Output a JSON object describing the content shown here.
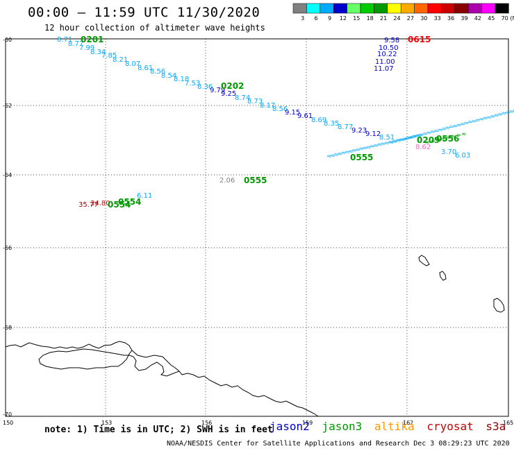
{
  "header": {
    "title": "00:00 – 11:59 UTC 11/30/2020",
    "subtitle": "12 hour collection of altimeter wave heights"
  },
  "legend": {
    "unit": "(ft)",
    "bins": [
      {
        "label": "3",
        "color": "#808080"
      },
      {
        "label": "6",
        "color": "#00ffff"
      },
      {
        "label": "9",
        "color": "#00aaff"
      },
      {
        "label": "12",
        "color": "#0000cc"
      },
      {
        "label": "15",
        "color": "#66ff66"
      },
      {
        "label": "18",
        "color": "#00cc00"
      },
      {
        "label": "21",
        "color": "#009900"
      },
      {
        "label": "24",
        "color": "#ffff00"
      },
      {
        "label": "27",
        "color": "#ffaa00"
      },
      {
        "label": "30",
        "color": "#ff6600"
      },
      {
        "label": "33",
        "color": "#ff0000"
      },
      {
        "label": "36",
        "color": "#cc0000"
      },
      {
        "label": "39",
        "color": "#880000"
      },
      {
        "label": "42",
        "color": "#aa00aa"
      },
      {
        "label": "45",
        "color": "#ff00ff"
      },
      {
        "label": "70",
        "color": "#000000"
      }
    ]
  },
  "axes": {
    "lat_labels": [
      "-60",
      "-62",
      "-64",
      "-66",
      "-68",
      "-70"
    ],
    "lon_labels": [
      "150",
      "153",
      "156",
      "159",
      "162",
      "165"
    ]
  },
  "footer": {
    "note": "note: 1) Time is in UTC; 2) SWH is in feet",
    "credit": "NOAA/NESDIS Center for Satellite Applications and Research   Dec  3 08:29:23 UTC 2020"
  },
  "satellites": [
    {
      "name": "jason2",
      "color": "#0000cc"
    },
    {
      "name": "jason3",
      "color": "#009900"
    },
    {
      "name": "altika",
      "color": "#ff9900"
    },
    {
      "name": "cryosat",
      "color": "#cc0000"
    },
    {
      "name": "s3a",
      "color": "#880000"
    }
  ],
  "observations": [
    {
      "value": "8.71",
      "color": "#00aaff"
    },
    {
      "value": "8.77",
      "color": "#00aaff"
    },
    {
      "value": "7.99",
      "color": "#00aaff"
    },
    {
      "value": "8.34",
      "color": "#00aaff"
    },
    {
      "value": "7.85",
      "color": "#00aaff"
    },
    {
      "value": "8.21",
      "color": "#00aaff"
    },
    {
      "value": "8.07",
      "color": "#00aaff"
    },
    {
      "value": "8.61",
      "color": "#00aaff"
    },
    {
      "value": "8.56",
      "color": "#00aaff"
    },
    {
      "value": "8.54",
      "color": "#00aaff"
    },
    {
      "value": "8.18",
      "color": "#00aaff"
    },
    {
      "value": "7.53",
      "color": "#00aaff"
    },
    {
      "value": "8.36",
      "color": "#00aaff"
    },
    {
      "value": "9.79",
      "color": "#0000cc"
    },
    {
      "value": "9.25",
      "color": "#0000cc"
    },
    {
      "value": "8.74",
      "color": "#00aaff"
    },
    {
      "value": "8.73",
      "color": "#00aaff"
    },
    {
      "value": "8.17",
      "color": "#00aaff"
    },
    {
      "value": "8.56",
      "color": "#00aaff"
    },
    {
      "value": "9.15",
      "color": "#0000cc"
    },
    {
      "value": "9.61",
      "color": "#0000cc"
    },
    {
      "value": "8.69",
      "color": "#00aaff"
    },
    {
      "value": "8.35",
      "color": "#00aaff"
    },
    {
      "value": "8.77",
      "color": "#00aaff"
    },
    {
      "value": "9.23",
      "color": "#0000cc"
    },
    {
      "value": "9.12",
      "color": "#0000cc"
    },
    {
      "value": "8.51",
      "color": "#00aaff"
    },
    {
      "value": "9.58",
      "color": "#0000cc"
    },
    {
      "value": "10.50",
      "color": "#0000cc"
    },
    {
      "value": "10.22",
      "color": "#0000cc"
    },
    {
      "value": "11.00",
      "color": "#0000cc"
    },
    {
      "value": "11.07",
      "color": "#0000cc"
    },
    {
      "value": "8.62",
      "color": "#ff66cc"
    },
    {
      "value": "3.70",
      "color": "#00aaff"
    },
    {
      "value": "6.03",
      "color": "#00aaff"
    },
    {
      "value": "2.06",
      "color": "#808080"
    },
    {
      "value": "6.11",
      "color": "#00aaff"
    },
    {
      "value": "34.80",
      "color": "#cc0000"
    },
    {
      "value": "35.77",
      "color": "#880000"
    }
  ],
  "pass_times": [
    {
      "value": "0201",
      "color": "#009900"
    },
    {
      "value": "0202",
      "color": "#009900"
    },
    {
      "value": "0615",
      "color": "#ff0000"
    },
    {
      "value": "0555",
      "color": "#009900"
    },
    {
      "value": "0555",
      "color": "#009900"
    },
    {
      "value": "0554",
      "color": "#009900"
    },
    {
      "value": "0554",
      "color": "#009900"
    },
    {
      "value": "0209",
      "color": "#009900"
    },
    {
      "value": "0556",
      "color": "#009900"
    }
  ]
}
